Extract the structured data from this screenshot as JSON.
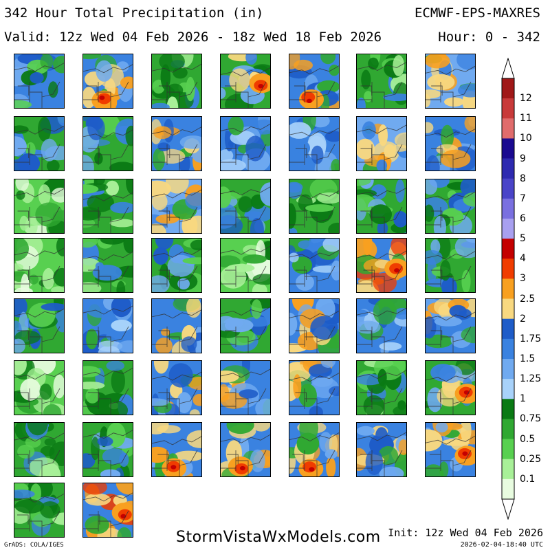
{
  "header": {
    "title": "342 Hour Total Precipitation (in)",
    "model": "ECMWF-EPS-MAXRES",
    "valid": "Valid: 12z Wed 04 Feb 2026 - 18z Wed 18 Feb 2026",
    "hour": "Hour: 0 - 342"
  },
  "colorbar": {
    "labels": [
      "12",
      "11",
      "10",
      "9",
      "8",
      "7",
      "6",
      "5",
      "4",
      "3",
      "2.5",
      "2",
      "1.75",
      "1.5",
      "1.25",
      "1",
      "0.75",
      "0.5",
      "0.25",
      "0.1"
    ],
    "colors": [
      "#a01818",
      "#c83a3a",
      "#e06c6c",
      "#1a0a90",
      "#2e2ab0",
      "#4a44c8",
      "#7a70e0",
      "#a8a0f0",
      "#c40000",
      "#f03c00",
      "#f8a020",
      "#f8d880",
      "#1e5cc8",
      "#3a82e0",
      "#70aaf0",
      "#a8d2fa",
      "#0a7a14",
      "#30a832",
      "#58d050",
      "#a8f098",
      "#e8fce0"
    ]
  },
  "panels": {
    "count": 51,
    "columns": 7,
    "precip_class": [
      "mixed-blue",
      "orange-south",
      "green",
      "red-east",
      "red-south",
      "green",
      "orange",
      "blue-green",
      "blue-green",
      "blue-orange",
      "blue",
      "blue",
      "orange",
      "blue-orange",
      "light-green",
      "green",
      "orange",
      "green-blue",
      "green",
      "green-blue",
      "green-blue",
      "light-green",
      "green",
      "green-blue",
      "light-green",
      "blue",
      "orange-red",
      "green-blue",
      "blue-green",
      "blue",
      "blue-orange",
      "green-blue",
      "blue-orange",
      "blue",
      "blue-orange",
      "light-green",
      "green",
      "blue-orange",
      "blue-orange",
      "blue-orange",
      "green",
      "red-east",
      "green",
      "blue-green",
      "orange-south",
      "orange-south",
      "orange-south",
      "blue-orange",
      "orange-east",
      "green",
      "orange-red"
    ]
  },
  "footer": {
    "site": "StormVistaWxModels.com",
    "init": "Init: 12z Wed 04 Feb 2026",
    "timestamp": "2026-02-04-18:40 UTC",
    "credit": "GrADS: COLA/IGES"
  }
}
